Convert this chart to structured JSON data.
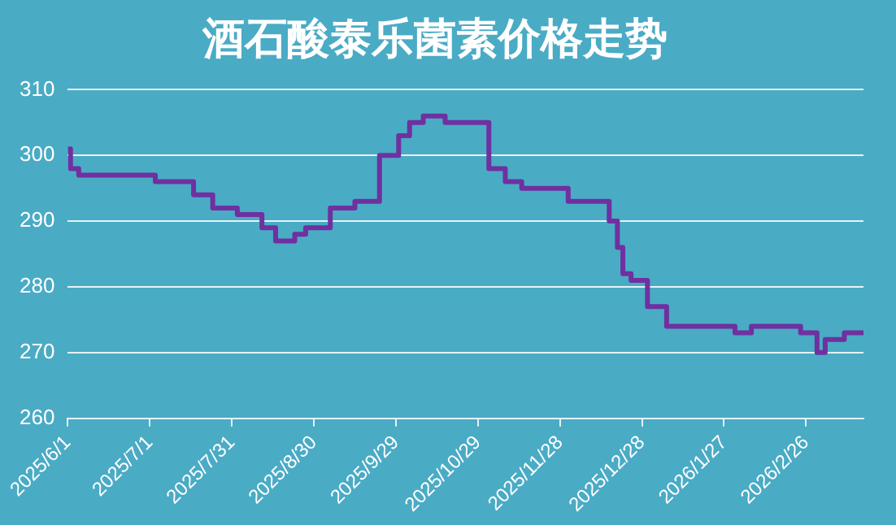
{
  "chart_data": {
    "type": "step",
    "title": "酒石酸泰乐菌素价格走势",
    "x": [
      "2025-06-01",
      "2025-06-02",
      "2025-06-05",
      "2025-07-03",
      "2025-07-17",
      "2025-07-24",
      "2025-08-02",
      "2025-08-11",
      "2025-08-16",
      "2025-08-23",
      "2025-08-27",
      "2025-09-05",
      "2025-09-14",
      "2025-09-23",
      "2025-09-30",
      "2025-10-04",
      "2025-10-09",
      "2025-10-17",
      "2025-11-02",
      "2025-11-08",
      "2025-11-14",
      "2025-12-01",
      "2025-12-16",
      "2025-12-19",
      "2025-12-21",
      "2025-12-24",
      "2025-12-30",
      "2026-01-06",
      "2026-01-31",
      "2026-02-06",
      "2026-02-24",
      "2026-03-02",
      "2026-03-05",
      "2026-03-12",
      "2026-03-19"
    ],
    "series": [
      {
        "color": "#7030a0",
        "values": [
          301,
          298,
          297,
          296,
          294,
          292,
          291,
          289,
          287,
          288,
          289,
          292,
          293,
          300,
          303,
          305,
          306,
          305,
          298,
          296,
          295,
          293,
          290,
          286,
          282,
          281,
          277,
          274,
          273,
          274,
          273,
          270,
          272,
          273,
          273
        ]
      }
    ],
    "xlim": [
      "2025-06-01",
      "2026-03-19"
    ],
    "xticks": [
      {
        "value": "2025-06-01",
        "label": "2025/6/1"
      },
      {
        "value": "2025-07-01",
        "label": "2025/7/1"
      },
      {
        "value": "2025-07-31",
        "label": "2025/7/31"
      },
      {
        "value": "2025-08-30",
        "label": "2025/8/30"
      },
      {
        "value": "2025-09-29",
        "label": "2025/9/29"
      },
      {
        "value": "2025-10-29",
        "label": "2025/10/29"
      },
      {
        "value": "2025-11-28",
        "label": "2025/11/28"
      },
      {
        "value": "2025-12-28",
        "label": "2025/12/28"
      },
      {
        "value": "2026-01-27",
        "label": "2026/1/27"
      },
      {
        "value": "2026-02-26",
        "label": "2026/2/26"
      }
    ],
    "ylim": [
      260,
      310
    ],
    "yticks": [
      260,
      270,
      280,
      290,
      300,
      310
    ],
    "grid": "y",
    "legend": false,
    "marker": "none",
    "line_style": "solid"
  }
}
